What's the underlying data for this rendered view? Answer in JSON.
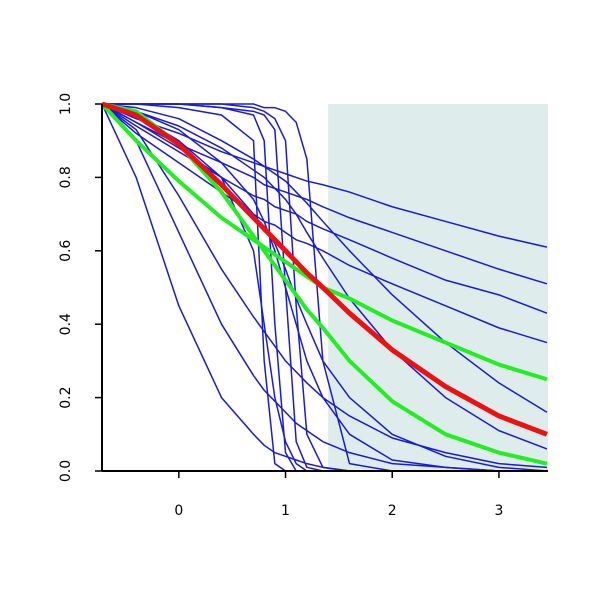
{
  "chart_data": {
    "type": "line",
    "x": [
      -0.72,
      -0.4,
      0,
      0.4,
      0.7,
      0.8,
      0.9,
      1.0,
      1.1,
      1.2,
      1.35,
      1.6,
      2.0,
      2.5,
      3.0,
      3.45
    ],
    "xlim": [
      -0.72,
      3.46
    ],
    "ylim": [
      0,
      1
    ],
    "xticks": [
      0,
      1,
      2,
      3
    ],
    "yticks": [
      {
        "value": 0,
        "label": "0.0"
      },
      {
        "value": 0.2,
        "label": "0.2"
      },
      {
        "value": 0.4,
        "label": "0.4"
      },
      {
        "value": 0.6,
        "label": "0.6"
      },
      {
        "value": 0.8,
        "label": "0.8"
      },
      {
        "value": 1,
        "label": "1.0"
      }
    ],
    "shaded_x": [
      1.4,
      3.46
    ],
    "shade_color": "#deecec",
    "series": [
      {
        "color": "#1a1adc",
        "values": [
          1,
          0.96,
          0.92,
          0.87,
          0.84,
          0.83,
          0.82,
          0.81,
          0.8,
          0.79,
          0.78,
          0.76,
          0.72,
          0.68,
          0.64,
          0.61
        ]
      },
      {
        "color": "#1a1adc",
        "values": [
          1,
          0.95,
          0.89,
          0.84,
          0.8,
          0.78,
          0.77,
          0.76,
          0.75,
          0.74,
          0.72,
          0.69,
          0.65,
          0.6,
          0.55,
          0.51
        ]
      },
      {
        "color": "#1a1adc",
        "values": [
          1,
          0.94,
          0.87,
          0.8,
          0.75,
          0.74,
          0.72,
          0.71,
          0.7,
          0.68,
          0.66,
          0.63,
          0.58,
          0.52,
          0.48,
          0.43
        ]
      },
      {
        "color": "#1a1adc",
        "values": [
          1,
          0.92,
          0.84,
          0.76,
          0.7,
          0.68,
          0.67,
          0.65,
          0.63,
          0.62,
          0.6,
          0.56,
          0.51,
          0.45,
          0.39,
          0.35
        ]
      },
      {
        "color": "#1a1adc",
        "values": [
          1,
          1,
          0.99,
          0.97,
          0.9,
          0.3,
          0.02,
          0,
          0,
          0,
          0,
          0,
          0,
          0,
          0,
          0
        ]
      },
      {
        "color": "#1a1adc",
        "values": [
          1,
          1,
          1,
          0.99,
          0.97,
          0.9,
          0.4,
          0.05,
          0,
          0,
          0,
          0,
          0,
          0,
          0,
          0
        ]
      },
      {
        "color": "#1a1adc",
        "values": [
          1,
          1,
          1,
          0.99,
          0.98,
          0.97,
          0.93,
          0.5,
          0.08,
          0.01,
          0,
          0,
          0,
          0,
          0,
          0
        ]
      },
      {
        "color": "#1a1adc",
        "values": [
          1,
          1,
          1,
          1,
          0.99,
          0.98,
          0.96,
          0.9,
          0.45,
          0.1,
          0.01,
          0,
          0,
          0,
          0,
          0
        ]
      },
      {
        "color": "#1a1adc",
        "values": [
          1,
          1,
          1,
          1,
          1,
          0.99,
          0.99,
          0.98,
          0.95,
          0.85,
          0.3,
          0.02,
          0,
          0,
          0,
          0
        ]
      },
      {
        "color": "#1a1adc",
        "values": [
          1,
          0.98,
          0.93,
          0.84,
          0.74,
          0.68,
          0.6,
          0.5,
          0.4,
          0.3,
          0.2,
          0.1,
          0.03,
          0.01,
          0,
          0
        ]
      },
      {
        "color": "#1a1adc",
        "values": [
          1,
          0.97,
          0.9,
          0.8,
          0.7,
          0.66,
          0.62,
          0.55,
          0.47,
          0.4,
          0.3,
          0.2,
          0.1,
          0.04,
          0.01,
          0
        ]
      },
      {
        "color": "#1a1adc",
        "values": [
          1,
          0.8,
          0.45,
          0.2,
          0.1,
          0.07,
          0.05,
          0.04,
          0.03,
          0.02,
          0.01,
          0,
          0,
          0,
          0,
          0
        ]
      },
      {
        "color": "#1a1adc",
        "values": [
          1,
          0.9,
          0.65,
          0.4,
          0.26,
          0.22,
          0.19,
          0.16,
          0.13,
          0.11,
          0.08,
          0.05,
          0.02,
          0.01,
          0,
          0
        ]
      },
      {
        "color": "#1a1adc",
        "values": [
          1,
          0.93,
          0.75,
          0.55,
          0.42,
          0.38,
          0.34,
          0.3,
          0.27,
          0.24,
          0.2,
          0.15,
          0.09,
          0.05,
          0.02,
          0.01
        ]
      },
      {
        "color": "#1a1adc",
        "values": [
          1,
          0.98,
          0.94,
          0.88,
          0.82,
          0.8,
          0.77,
          0.74,
          0.7,
          0.65,
          0.58,
          0.47,
          0.33,
          0.2,
          0.11,
          0.06
        ]
      },
      {
        "color": "#1a1adc",
        "values": [
          1,
          0.99,
          0.96,
          0.9,
          0.85,
          0.83,
          0.81,
          0.79,
          0.76,
          0.73,
          0.68,
          0.6,
          0.48,
          0.35,
          0.24,
          0.16
        ]
      },
      {
        "color": "#1a1adc",
        "values": [
          1,
          0.95,
          0.88,
          0.8,
          0.6,
          0.4,
          0.2,
          0.08,
          0.02,
          0,
          0,
          0,
          0,
          0,
          0,
          0
        ]
      },
      {
        "color": "#22ee22",
        "width": 4,
        "values": [
          1,
          0.9,
          0.79,
          0.69,
          0.63,
          0.61,
          0.59,
          0.57,
          0.55,
          0.53,
          0.5,
          0.47,
          0.41,
          0.35,
          0.29,
          0.25
        ]
      },
      {
        "color": "#22ee22",
        "width": 4,
        "values": [
          1,
          0.98,
          0.89,
          0.76,
          0.64,
          0.6,
          0.56,
          0.52,
          0.48,
          0.44,
          0.39,
          0.3,
          0.19,
          0.1,
          0.05,
          0.02
        ]
      },
      {
        "color": "#ee1111",
        "width": 5,
        "values": [
          1,
          0.97,
          0.89,
          0.78,
          0.69,
          0.66,
          0.63,
          0.6,
          0.57,
          0.54,
          0.5,
          0.43,
          0.33,
          0.23,
          0.15,
          0.1
        ]
      }
    ]
  }
}
